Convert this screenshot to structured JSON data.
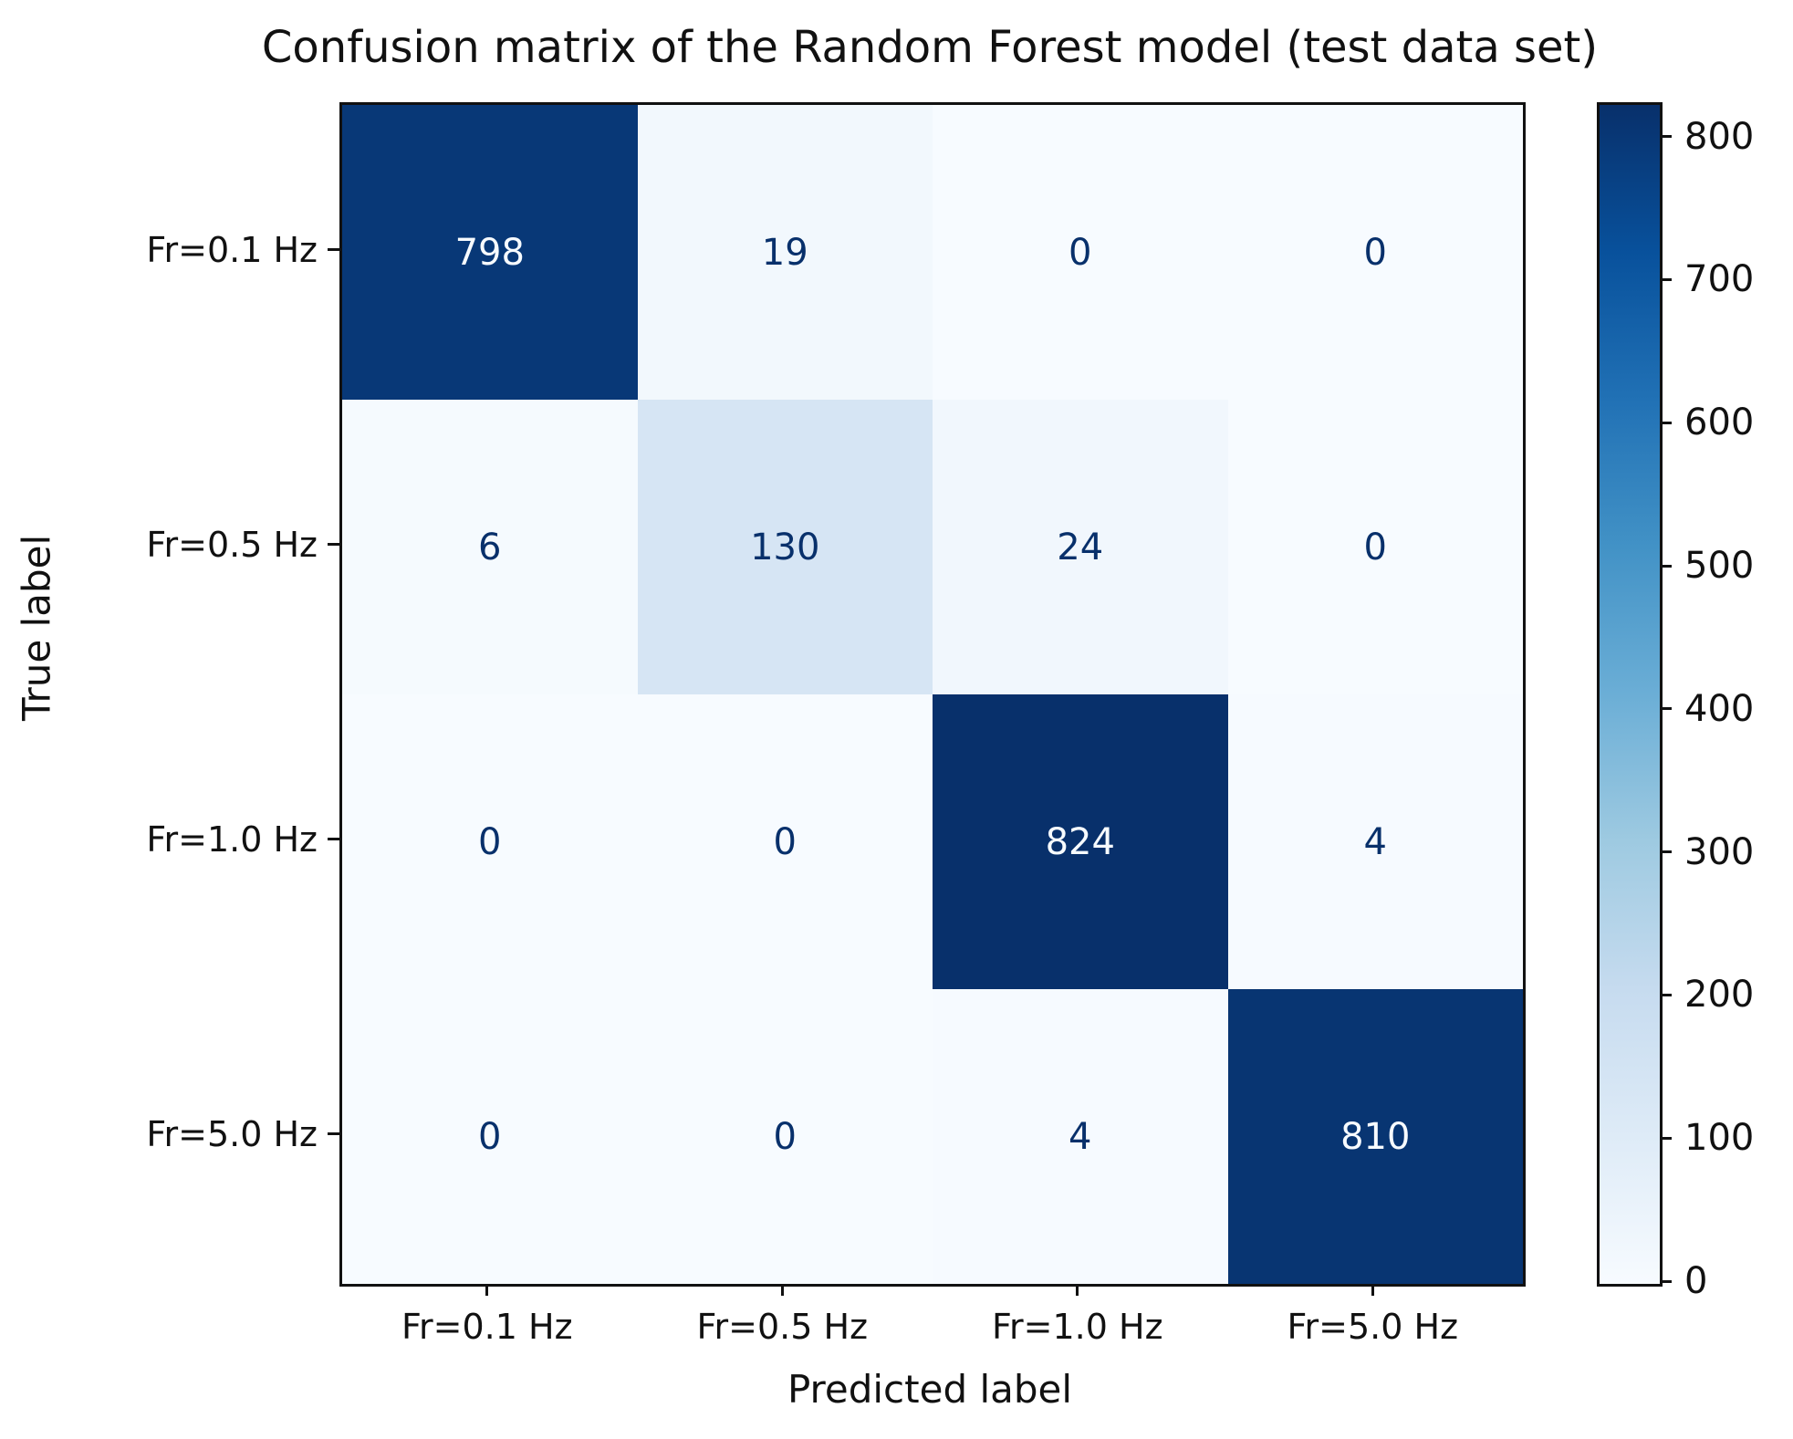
{
  "figure": {
    "title": "Confusion matrix of the Random Forest model (test data set)"
  },
  "chart_data": {
    "type": "heatmap",
    "title": "Confusion matrix of the Random Forest model (test data set)",
    "xlabel": "Predicted label",
    "ylabel": "True label",
    "x_categories": [
      "Fr=0.1 Hz",
      "Fr=0.5 Hz",
      "Fr=1.0 Hz",
      "Fr=5.0 Hz"
    ],
    "y_categories": [
      "Fr=0.1 Hz",
      "Fr=0.5 Hz",
      "Fr=1.0 Hz",
      "Fr=5.0 Hz"
    ],
    "matrix": [
      [
        798,
        19,
        0,
        0
      ],
      [
        6,
        130,
        24,
        0
      ],
      [
        0,
        0,
        824,
        4
      ],
      [
        0,
        0,
        4,
        810
      ]
    ],
    "vmin": 0,
    "vmax": 824,
    "colormap": "Blues",
    "grid": false,
    "legend_position": "right-colorbar",
    "colorbar_ticks": [
      800,
      700,
      600,
      500,
      400,
      300,
      200,
      100,
      0
    ],
    "colorbar_gradient_top_to_bottom": [
      "#08306b",
      "#08519c",
      "#2171b5",
      "#4292c6",
      "#6baed6",
      "#9ecae1",
      "#c6dbef",
      "#deebf7",
      "#f7fbff"
    ],
    "cell_colors": [
      [
        "#083877",
        "#f2f8fd",
        "#f7fbff",
        "#f7fbff"
      ],
      [
        "#f5fafe",
        "#d6e5f4",
        "#f1f7fd",
        "#f7fbff"
      ],
      [
        "#f7fbff",
        "#f7fbff",
        "#08306b",
        "#f6faff"
      ],
      [
        "#f7fbff",
        "#f7fbff",
        "#f6faff",
        "#083572"
      ]
    ],
    "cell_text_colors": [
      [
        "#f7fbff",
        "#08306b",
        "#08306b",
        "#08306b"
      ],
      [
        "#08306b",
        "#08306b",
        "#08306b",
        "#08306b"
      ],
      [
        "#08306b",
        "#08306b",
        "#f7fbff",
        "#08306b"
      ],
      [
        "#08306b",
        "#08306b",
        "#08306b",
        "#f7fbff"
      ]
    ],
    "axis_color": "#111111"
  }
}
